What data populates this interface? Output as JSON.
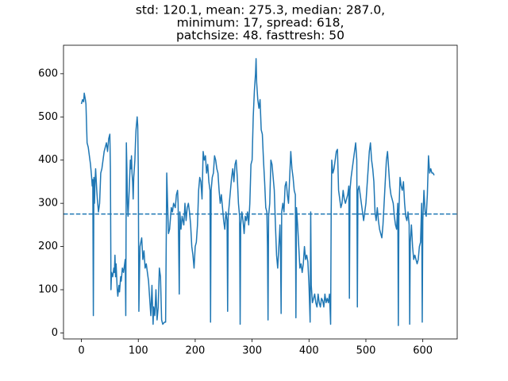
{
  "chart_data": {
    "type": "line",
    "title": [
      "std: 120.1, mean: 275.3, median: 287.0,",
      "minimum: 17, spread: 618,",
      "patchsize: 48. fasttresh: 50"
    ],
    "color": "#1f77b4",
    "x": [
      0,
      2,
      4,
      5,
      7,
      8,
      10,
      12,
      14,
      16,
      18,
      19,
      20,
      21,
      22,
      23,
      24,
      25,
      27,
      28,
      30,
      32,
      34,
      36,
      38,
      40,
      42,
      44,
      46,
      48,
      50,
      51,
      52,
      53,
      55,
      57,
      58,
      59,
      60,
      61,
      63,
      64,
      66,
      67,
      69,
      70,
      72,
      74,
      76,
      77,
      78,
      79,
      80,
      81,
      82,
      84,
      86,
      87,
      88,
      89,
      90,
      91,
      92,
      94,
      95,
      96,
      98,
      99,
      100,
      101,
      103,
      106,
      108,
      110,
      112,
      114,
      116,
      118,
      120,
      122,
      124,
      126,
      127,
      129,
      131,
      133,
      135,
      137,
      139,
      141,
      143,
      146,
      148,
      150,
      153,
      155,
      158,
      160,
      162,
      165,
      167,
      169,
      170,
      172,
      173,
      175,
      177,
      180,
      182,
      184,
      186,
      188,
      190,
      192,
      194,
      196,
      198,
      200,
      202,
      204,
      206,
      208,
      210,
      212,
      214,
      216,
      218,
      220,
      222,
      224,
      226,
      227,
      228,
      230,
      232,
      234,
      236,
      238,
      240,
      242,
      244,
      246,
      248,
      250,
      252,
      254,
      256,
      257,
      258,
      260,
      262,
      264,
      266,
      268,
      270,
      272,
      274,
      276,
      278,
      279,
      280,
      282,
      284,
      286,
      288,
      290,
      292,
      294,
      296,
      298,
      300,
      302,
      304,
      306,
      307,
      308,
      310,
      312,
      314,
      316,
      318,
      320,
      322,
      324,
      326,
      327,
      328,
      329,
      331,
      333,
      335,
      337,
      339,
      341,
      343,
      345,
      347,
      349,
      350,
      351,
      352,
      354,
      356,
      358,
      360,
      362,
      364,
      366,
      368,
      370,
      372,
      374,
      376,
      377,
      378,
      380,
      382,
      384,
      386,
      388,
      390,
      392,
      394,
      396,
      398,
      400,
      402,
      403,
      404,
      406,
      408,
      410,
      412,
      414,
      416,
      418,
      420,
      422,
      424,
      426,
      428,
      430,
      432,
      434,
      436,
      438,
      439,
      440,
      442,
      444,
      446,
      448,
      450,
      452,
      454,
      456,
      458,
      460,
      462,
      464,
      466,
      468,
      470,
      471,
      472,
      474,
      476,
      478,
      480,
      482,
      484,
      485,
      486,
      488,
      490,
      492,
      494,
      496,
      498,
      500,
      502,
      504,
      506,
      508,
      510,
      512,
      514,
      516,
      518,
      520,
      522,
      524,
      526,
      528,
      530,
      532,
      534,
      536,
      538,
      540,
      542,
      544,
      546,
      548,
      550,
      552,
      554,
      556,
      557,
      558,
      560,
      562,
      564,
      566,
      568,
      570,
      572,
      574,
      576,
      577,
      578,
      580,
      582,
      584,
      586,
      588,
      590,
      592,
      594,
      596,
      598,
      599,
      600,
      602,
      604,
      606,
      608,
      610,
      612,
      614,
      616,
      618,
      620
    ],
    "values": [
      530,
      540,
      535,
      555,
      540,
      530,
      440,
      430,
      410,
      390,
      360,
      340,
      355,
      40,
      360,
      300,
      350,
      380,
      330,
      310,
      280,
      300,
      370,
      380,
      400,
      420,
      430,
      440,
      420,
      450,
      460,
      380,
      100,
      140,
      130,
      150,
      140,
      180,
      130,
      160,
      100,
      85,
      110,
      95,
      130,
      120,
      150,
      140,
      160,
      170,
      40,
      440,
      380,
      300,
      270,
      330,
      400,
      380,
      410,
      370,
      350,
      310,
      360,
      400,
      440,
      470,
      500,
      480,
      380,
      50,
      200,
      220,
      170,
      190,
      150,
      160,
      140,
      120,
      80,
      40,
      110,
      20,
      60,
      40,
      100,
      30,
      60,
      150,
      130,
      30,
      20,
      25,
      25,
      370,
      230,
      240,
      290,
      280,
      300,
      290,
      320,
      330,
      300,
      90,
      280,
      240,
      270,
      250,
      300,
      260,
      290,
      300,
      280,
      250,
      200,
      180,
      150,
      200,
      210,
      250,
      330,
      360,
      350,
      310,
      420,
      400,
      410,
      370,
      390,
      350,
      330,
      25,
      330,
      360,
      370,
      410,
      400,
      380,
      370,
      330,
      300,
      320,
      290,
      260,
      240,
      280,
      260,
      50,
      270,
      300,
      330,
      360,
      380,
      350,
      390,
      400,
      360,
      300,
      270,
      20,
      250,
      280,
      260,
      230,
      270,
      260,
      280,
      250,
      300,
      390,
      400,
      500,
      560,
      600,
      635,
      580,
      540,
      520,
      540,
      470,
      460,
      400,
      350,
      290,
      280,
      200,
      30,
      270,
      300,
      400,
      390,
      360,
      330,
      250,
      180,
      150,
      200,
      250,
      180,
      45,
      280,
      300,
      280,
      340,
      350,
      320,
      300,
      360,
      420,
      380,
      360,
      330,
      320,
      35,
      290,
      250,
      200,
      150,
      160,
      140,
      160,
      200,
      170,
      180,
      165,
      110,
      25,
      280,
      110,
      70,
      80,
      90,
      70,
      60,
      90,
      70,
      60,
      80,
      75,
      60,
      90,
      70,
      80,
      70,
      90,
      20,
      280,
      400,
      370,
      380,
      400,
      420,
      425,
      330,
      310,
      290,
      300,
      330,
      310,
      300,
      310,
      320,
      340,
      80,
      330,
      360,
      380,
      400,
      420,
      440,
      400,
      60,
      330,
      340,
      320,
      300,
      280,
      260,
      280,
      300,
      340,
      380,
      420,
      440,
      400,
      380,
      350,
      280,
      260,
      290,
      260,
      240,
      230,
      220,
      250,
      300,
      350,
      400,
      420,
      380,
      340,
      320,
      310,
      300,
      270,
      250,
      240,
      300,
      17,
      280,
      360,
      340,
      330,
      350,
      300,
      270,
      260,
      280,
      250,
      20,
      210,
      250,
      200,
      170,
      180,
      170,
      160,
      170,
      200,
      210,
      300,
      25,
      260,
      330,
      280,
      270,
      320,
      410,
      370,
      380,
      370,
      370,
      365
    ],
    "hline": 275.3,
    "xlim": [
      -31.45,
      660.45
    ],
    "ylim": [
      -13.9,
      665.9
    ],
    "xticks": [
      0,
      100,
      200,
      300,
      400,
      500,
      600
    ],
    "yticks": [
      0,
      100,
      200,
      300,
      400,
      500,
      600
    ]
  }
}
